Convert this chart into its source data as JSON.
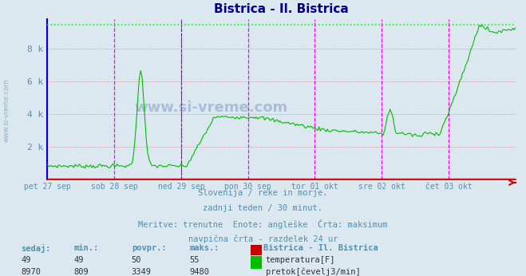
{
  "title": "Bistrica - Il. Bistrica",
  "title_color": "#00008B",
  "title_fontsize": 11,
  "bg_color": "#dce8f0",
  "plot_bg_color": "#dce8f0",
  "fig_bg_color": "#dce8f0",
  "watermark": "www.si-vreme.com",
  "subtitle_lines": [
    "Slovenija / reke in morje.",
    "zadnji teden / 30 minut.",
    "Meritve: trenutne  Enote: angleške  Črta: maksimum",
    "navpična črta - razdelek 24 ur"
  ],
  "xlabel_color": "#5090b0",
  "xtick_labels": [
    "pet 27 sep",
    "sob 28 sep",
    "ned 29 sep",
    "pon 30 sep",
    "tor 01 okt",
    "sre 02 okt",
    "čet 03 okt"
  ],
  "xtick_positions": [
    0,
    48,
    96,
    144,
    192,
    240,
    288
  ],
  "n_points": 337,
  "ylim": [
    0,
    9800
  ],
  "ytick_positions": [
    0,
    2000,
    4000,
    6000,
    8000
  ],
  "ytick_labels": [
    "",
    "2 k",
    "4 k",
    "6 k",
    "8 k"
  ],
  "grid_h_color": "#d08080",
  "grid_v_color": "#c0c0d0",
  "vline_color": "#ff00ff",
  "vline_black_idx": 96,
  "max_line_color": "#00ff00",
  "max_value": 9480,
  "temp_color": "#cc0000",
  "temp_value": 49,
  "flow_color": "#00bb00",
  "flow_min": 809,
  "flow_max": 9480,
  "flow_avg": 3349,
  "flow_current": 8970,
  "temp_min": 49,
  "temp_avg": 50,
  "temp_max": 55,
  "temp_current": 49,
  "legend_title": "Bistrica - Il. Bistrica",
  "legend_items": [
    {
      "label": "temperatura[F]",
      "color": "#cc0000"
    },
    {
      "label": "pretok[čevelj3/min]",
      "color": "#00bb00"
    }
  ],
  "stats_headers": [
    "sedaj:",
    "min.:",
    "povpr.:",
    "maks.:"
  ],
  "stats_temp": [
    49,
    49,
    50,
    55
  ],
  "stats_flow": [
    8970,
    809,
    3349,
    9480
  ],
  "arrow_color": "#cc0000",
  "left_spine_color": "#0000cc",
  "bottom_spine_color": "#cc0000"
}
